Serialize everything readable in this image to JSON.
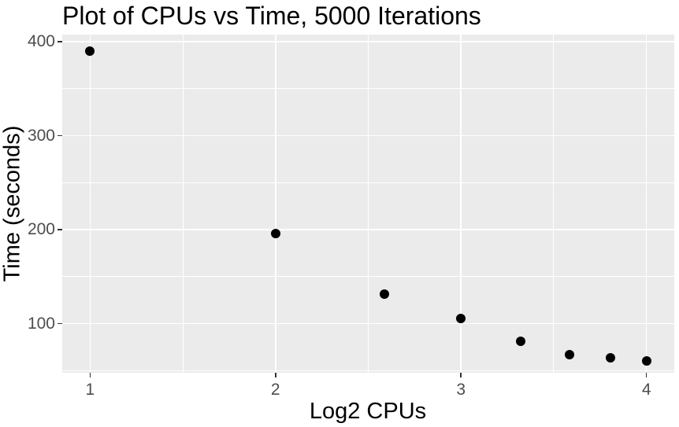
{
  "chart_data": {
    "type": "scatter",
    "title": "Plot of CPUs vs Time, 5000 Iterations",
    "xlabel": "Log2 CPUs",
    "ylabel": "Time (seconds)",
    "points": [
      {
        "x": 1.0,
        "y": 390
      },
      {
        "x": 2.0,
        "y": 196
      },
      {
        "x": 2.585,
        "y": 131
      },
      {
        "x": 3.0,
        "y": 105
      },
      {
        "x": 3.322,
        "y": 81
      },
      {
        "x": 3.585,
        "y": 67
      },
      {
        "x": 3.807,
        "y": 63
      },
      {
        "x": 4.0,
        "y": 60
      }
    ],
    "xlim": [
      0.85,
      4.15
    ],
    "ylim": [
      47.5,
      407.5
    ],
    "x_major_ticks": [
      1,
      2,
      3,
      4
    ],
    "x_minor_ticks": [
      1.5,
      2.5,
      3.5
    ],
    "y_major_ticks": [
      100,
      200,
      300,
      400
    ],
    "y_minor_ticks": [
      50,
      150,
      250,
      350
    ],
    "grid": true,
    "legend_position": "none",
    "point_color": "#000000",
    "panel_background": "#EBEBEB",
    "grid_color": "#FFFFFF",
    "tick_mark_color": "#333333",
    "tick_label_color": "#4D4D4D",
    "title_color": "#000000"
  }
}
